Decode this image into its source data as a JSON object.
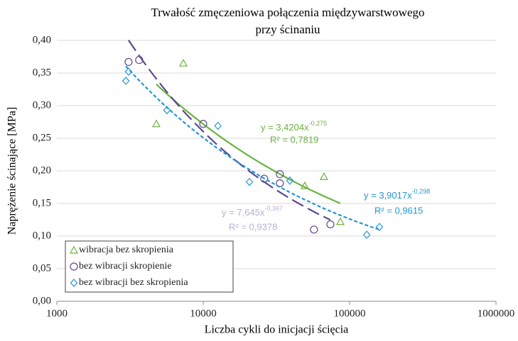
{
  "chart_data": {
    "type": "scatter",
    "title": [
      "Trwałość zmęczeniowa połączenia międzywarstwowego",
      "przy ścinaniu"
    ],
    "x_label": "Liczba cykli do inicjacji ścięcia",
    "y_label": "Naprężenie ścinające [MPa]",
    "x_scale": "log",
    "xlim": [
      1000,
      1000000
    ],
    "xticks": [
      1000,
      10000,
      100000,
      1000000
    ],
    "ylim": [
      0,
      0.4
    ],
    "yticks": [
      {
        "value": 0,
        "label": "0,00"
      },
      {
        "value": 0.05,
        "label": "0,05"
      },
      {
        "value": 0.1,
        "label": "0,10"
      },
      {
        "value": 0.15,
        "label": "0,15"
      },
      {
        "value": 0.2,
        "label": "0,20"
      },
      {
        "value": 0.25,
        "label": "0,25"
      },
      {
        "value": 0.3,
        "label": "0,30"
      },
      {
        "value": 0.35,
        "label": "0,35"
      },
      {
        "value": 0.4,
        "label": "0,40"
      }
    ],
    "grid": true,
    "legend": "lower left",
    "series": [
      {
        "name": "wibracja bez skropienia",
        "marker": "triangle",
        "color": "#6cb33f",
        "label_color": "#6cb33f",
        "dash": "solid",
        "x": [
          4780,
          7310,
          49400,
          66800,
          86500
        ],
        "values": [
          0.272,
          0.365,
          0.177,
          0.191,
          0.122
        ],
        "trendline": {
          "a": 3.4204,
          "b": -0.275,
          "equation": "y = 3,4204x",
          "exponent": "-0,275",
          "r_squared": "R² = 0,7819"
        }
      },
      {
        "name": "bez wibracji skropienie",
        "marker": "circle",
        "color": "#5c4a8c",
        "label_color": "#b9b0d6",
        "dash": "long",
        "x": [
          3090,
          3650,
          10000,
          26100,
          33400,
          33400,
          57100,
          73900
        ],
        "values": [
          0.367,
          0.37,
          0.272,
          0.188,
          0.195,
          0.181,
          0.11,
          0.118
        ],
        "trendline": {
          "a": 7.645,
          "b": -0.367,
          "equation": "y = 7,645x",
          "exponent": "-0,367",
          "r_squared": "R² = 0,9378"
        }
      },
      {
        "name": "bez wibracji bez skropienia",
        "marker": "diamond",
        "color": "#2596d4",
        "label_color": "#2596d4",
        "dash": "short",
        "x": [
          2960,
          3090,
          5650,
          12600,
          20700,
          39100,
          131000,
          160000
        ],
        "values": [
          0.338,
          0.352,
          0.293,
          0.269,
          0.183,
          0.185,
          0.102,
          0.114
        ],
        "trendline": {
          "a": 3.9017,
          "b": -0.298,
          "equation": "y = 3,9017x",
          "exponent": "-0,298",
          "r_squared": "R² = 0,9615"
        }
      }
    ]
  }
}
